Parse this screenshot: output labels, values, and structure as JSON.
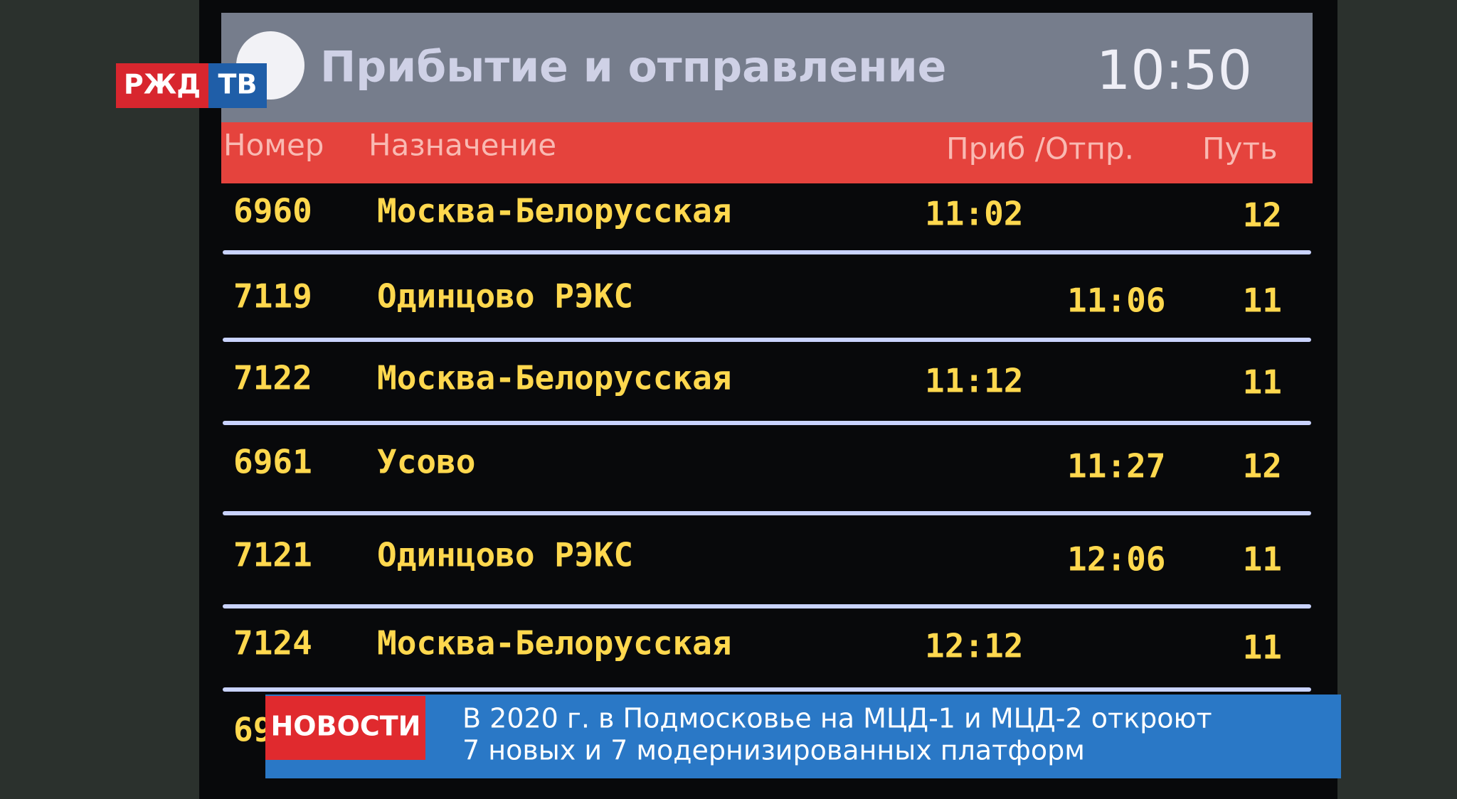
{
  "logo": {
    "left": "РЖД",
    "right": "ТВ"
  },
  "board": {
    "title": "Прибытие и отправление",
    "clock": "10:50",
    "headers": {
      "number": "Номер",
      "destination": "Назначение",
      "times": "Приб /Отпр.",
      "track": "Путь"
    },
    "rows": [
      {
        "number": "6960",
        "destination": "Москва-Белорусская",
        "arrival": "11:02",
        "track": "12"
      },
      {
        "number": "7119",
        "destination": "Одинцово РЭКС",
        "departure": "11:06",
        "track": "11"
      },
      {
        "number": "7122",
        "destination": "Москва-Белорусская",
        "arrival": "11:12",
        "track": "11"
      },
      {
        "number": "6961",
        "destination": "Усово",
        "departure": "11:27",
        "track": "12"
      },
      {
        "number": "7121",
        "destination": "Одинцово РЭКС",
        "departure": "12:06",
        "track": "11"
      },
      {
        "number": "7124",
        "destination": "Москва-Белорусская",
        "arrival": "12:12",
        "track": "11"
      },
      {
        "number": "69"
      }
    ]
  },
  "ticker": {
    "label": "НОВОСТИ",
    "lines": [
      "В 2020 г. в Подмосковье на МЦД-1 и МЦД-2 откроют",
      "7 новых и 7 модернизированных платформ"
    ]
  }
}
